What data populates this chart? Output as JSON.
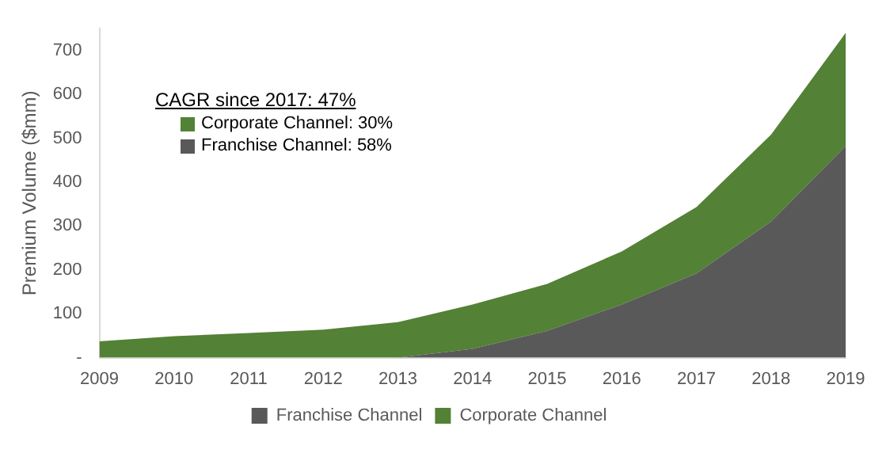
{
  "chart_data": {
    "type": "area",
    "stacked": true,
    "ylabel": "Premium Volume ($mm)",
    "categories": [
      "2009",
      "2010",
      "2011",
      "2012",
      "2013",
      "2014",
      "2015",
      "2016",
      "2017",
      "2018",
      "2019"
    ],
    "series": [
      {
        "name": "Franchise Channel",
        "color": "#595959",
        "values": [
          0,
          0,
          0,
          0,
          0,
          20,
          61,
          121,
          192,
          310,
          482
        ]
      },
      {
        "name": "Corporate Channel",
        "color": "#538135",
        "values": [
          37,
          49,
          56,
          64,
          81,
          101,
          107,
          121,
          151,
          198,
          258
        ]
      }
    ],
    "ylim": [
      0,
      750
    ],
    "yticks": [
      {
        "value": 0,
        "label": "-"
      },
      100,
      200,
      300,
      400,
      500,
      600,
      700
    ],
    "annotations": [
      "CAGR since 2017: 47%",
      "Corporate Channel: 30%",
      "Franchise Channel: 58%"
    ],
    "grid": false,
    "legend": "bottom"
  }
}
